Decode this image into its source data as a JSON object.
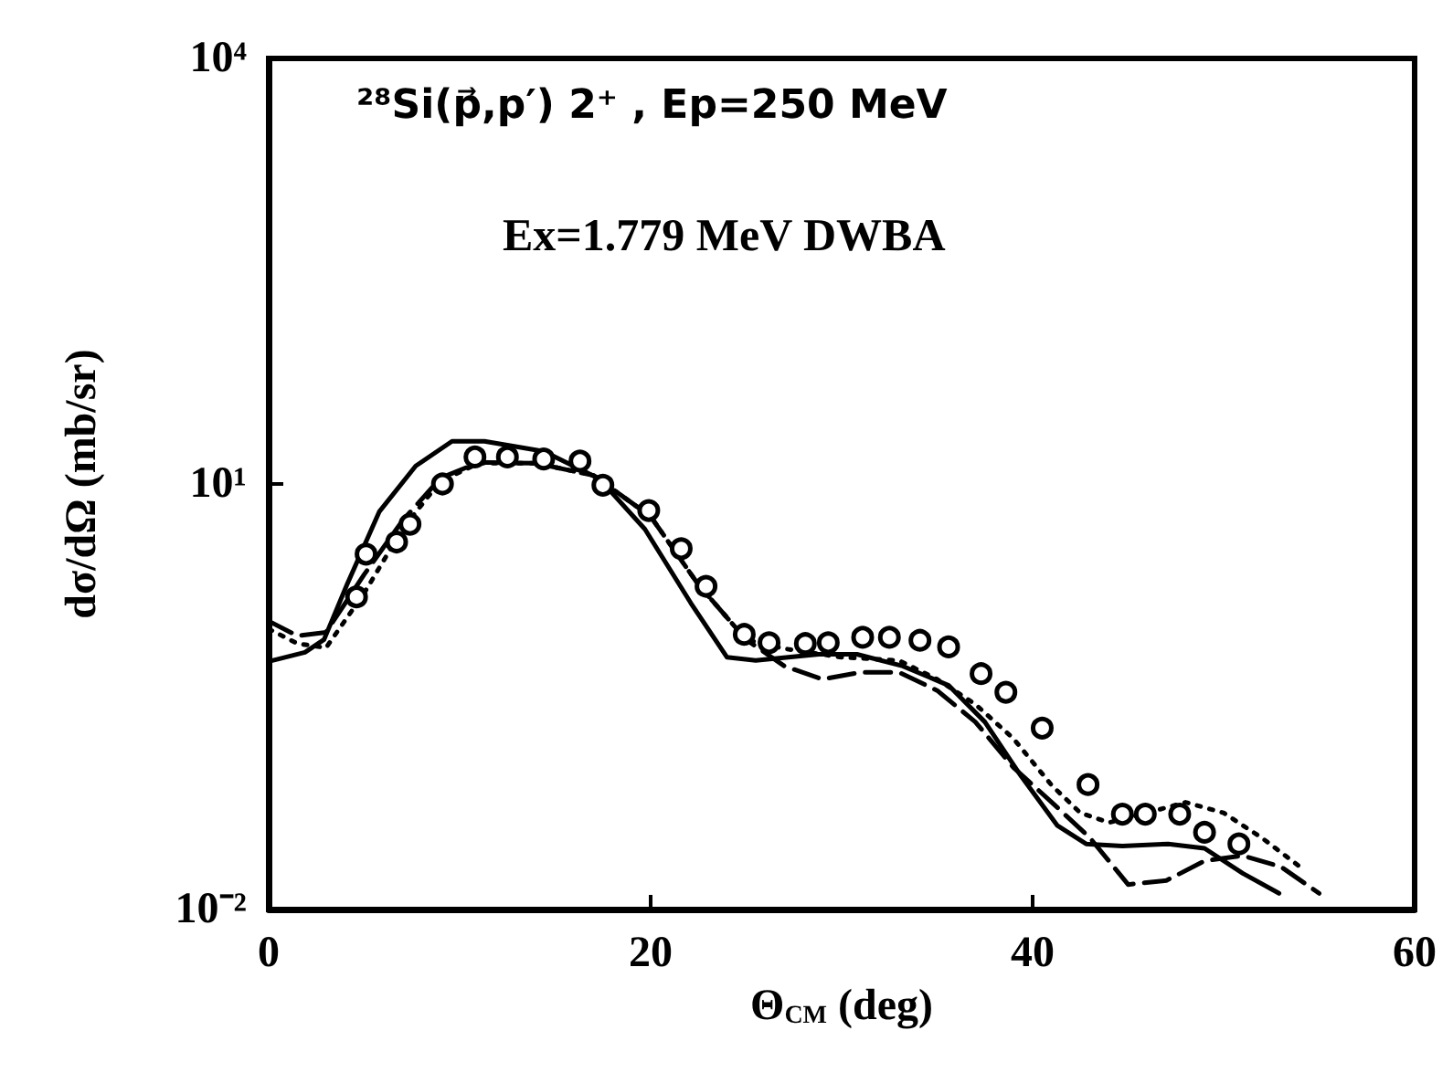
{
  "chart_data": {
    "type": "line",
    "title": "²⁸Si(p⃗,p′) 2⁺ , Ep=250 MeV",
    "subtitle": "Ex=1.779 MeV DWBA",
    "xlabel": "Θ$_{CM}$ (deg)",
    "ylabel": "dσ/dΩ (mb/sr)",
    "log": "y",
    "xlim": [
      0,
      60
    ],
    "xticks": [
      0,
      20,
      40,
      60
    ],
    "ylim": [
      0.01,
      10000
    ],
    "yticks": [
      {
        "value": 0.01,
        "label": "10⁻²"
      },
      {
        "value": 10,
        "label": "10¹"
      },
      {
        "value": 10000,
        "label": "10⁴"
      }
    ],
    "series": [
      {
        "type": "scatter",
        "color": "#000000",
        "marker": "circle",
        "x": [
          4.6,
          5.1,
          6.7,
          7.4,
          9.1,
          10.8,
          12.5,
          14.4,
          16.3,
          17.5,
          19.9,
          21.6,
          22.9,
          24.9,
          26.2,
          28.1,
          29.3,
          31.1,
          32.5,
          34.1,
          35.6,
          37.3,
          38.6,
          40.5,
          42.9,
          44.7,
          45.9,
          47.7,
          49.0,
          50.8
        ],
        "values": [
          1.6,
          3.2,
          3.9,
          5.2,
          10,
          15.5,
          15.5,
          15,
          14.5,
          9.8,
          6.5,
          3.5,
          1.9,
          0.87,
          0.76,
          0.75,
          0.76,
          0.83,
          0.83,
          0.79,
          0.71,
          0.46,
          0.34,
          0.19,
          0.076,
          0.047,
          0.047,
          0.047,
          0.035,
          0.029
        ]
      },
      {
        "color": "#000000",
        "line_style": "solid",
        "x": [
          0,
          1.9,
          2.9,
          4.1,
          5.8,
          7.7,
          9.6,
          11.3,
          14.4,
          17.3,
          19.7,
          22.1,
          24.0,
          25.5,
          28.8,
          30.8,
          33.2,
          35.6,
          37.5,
          39.4,
          41.3,
          42.8,
          44.7,
          47.1,
          49,
          51,
          52.9
        ],
        "values": [
          0.56,
          0.65,
          0.8,
          1.95,
          6.4,
          13.4,
          20,
          20,
          17,
          10.9,
          4.8,
          1.45,
          0.6,
          0.57,
          0.63,
          0.63,
          0.52,
          0.38,
          0.21,
          0.087,
          0.039,
          0.029,
          0.028,
          0.029,
          0.027,
          0.018,
          0.013
        ]
      },
      {
        "color": "#000000",
        "line_style": "dashed",
        "x": [
          0,
          1.5,
          3,
          5,
          7,
          9,
          11,
          14,
          17,
          20,
          22.5,
          25,
          27,
          29,
          31,
          33,
          35,
          37,
          39,
          41,
          43,
          45,
          47,
          49,
          51,
          53,
          55
        ],
        "values": [
          1.08,
          0.85,
          0.9,
          2.3,
          5.5,
          11,
          14.2,
          14,
          11.5,
          5.9,
          1.95,
          0.8,
          0.52,
          0.42,
          0.47,
          0.47,
          0.35,
          0.21,
          0.1,
          0.057,
          0.032,
          0.015,
          0.016,
          0.022,
          0.024,
          0.02,
          0.013
        ]
      },
      {
        "color": "#000000",
        "line_style": "dotted",
        "x": [
          0,
          1.5,
          3,
          5,
          7,
          9,
          11,
          14,
          17,
          20,
          22.5,
          25,
          27,
          30,
          33,
          35,
          37,
          39,
          41,
          42.5,
          44,
          46,
          48,
          50,
          52,
          54
        ],
        "values": [
          0.95,
          0.75,
          0.7,
          1.7,
          4.8,
          10.5,
          14,
          14,
          11.5,
          5.9,
          1.95,
          0.8,
          0.69,
          0.6,
          0.57,
          0.42,
          0.28,
          0.16,
          0.075,
          0.048,
          0.041,
          0.048,
          0.057,
          0.048,
          0.032,
          0.02
        ]
      }
    ]
  }
}
